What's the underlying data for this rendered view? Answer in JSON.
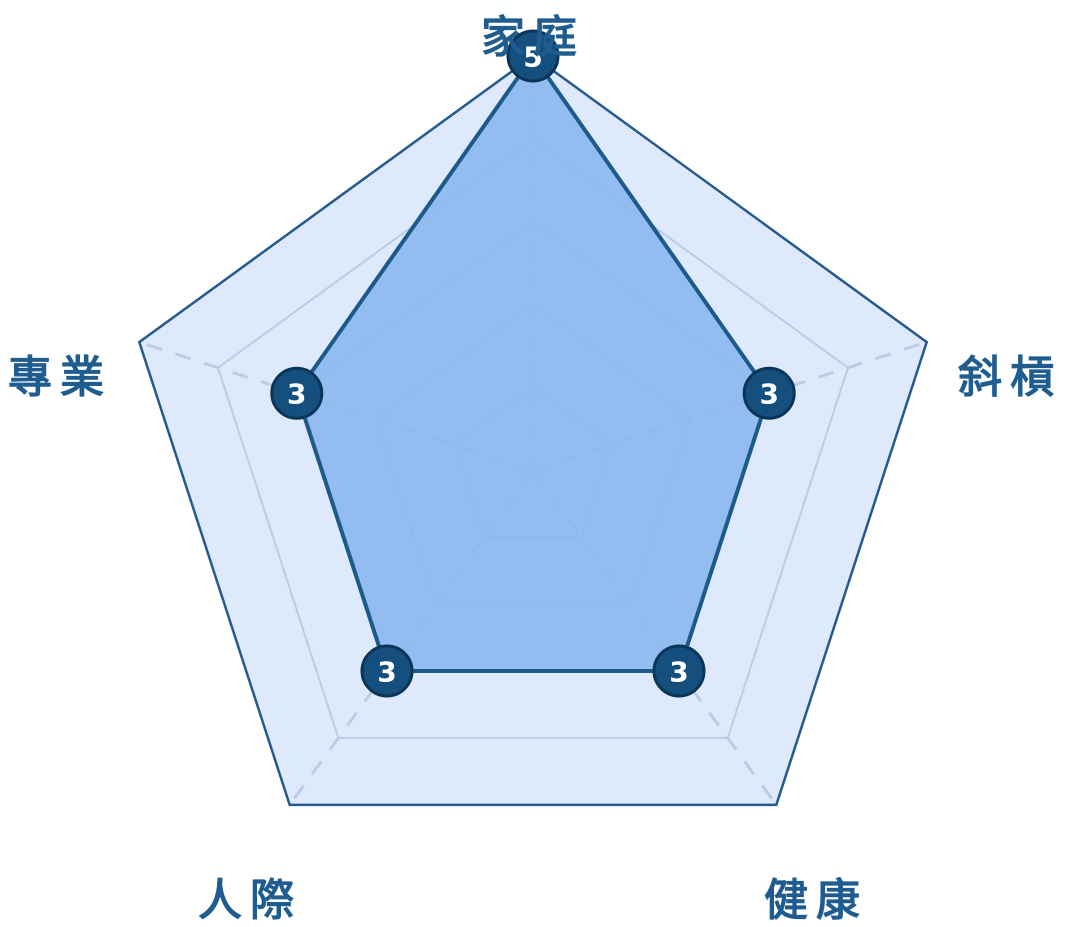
{
  "chart_data": {
    "type": "radar",
    "categories": [
      "家庭",
      "斜槓",
      "健康",
      "人際",
      "專業"
    ],
    "values": [
      5,
      3,
      3,
      3,
      3
    ],
    "value_labels": [
      "5",
      "3",
      "3",
      "3",
      "3"
    ],
    "rmax": 5,
    "rings": [
      1,
      2,
      3,
      4,
      5
    ],
    "colors": {
      "outer_fill": "#deeafb",
      "outer_stroke": "#245a8e",
      "ring_stroke": "#b9cde6",
      "spoke_stroke": "#b9cde6",
      "data_fill": "#8cb8f0",
      "data_stroke": "#1d5a8c",
      "marker_fill": "#154f7e",
      "marker_stroke": "#0b3557",
      "label_color": "#1f5c8f"
    }
  }
}
